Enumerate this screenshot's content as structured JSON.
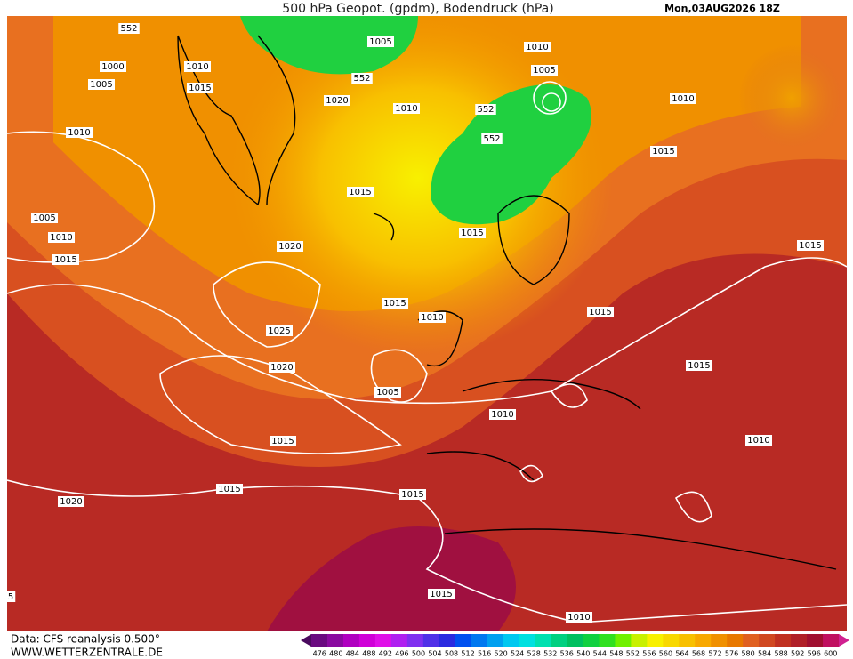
{
  "header": {
    "title": "500 hPa Geopot. (gpdm), Bodendruck (hPa)",
    "date": "Mon,03AUG2026 18Z"
  },
  "footer": {
    "source": "Data: CFS reanalysis 0.500°",
    "site": "WWW.WETTERZENTRALE.DE"
  },
  "contour_labels": [
    "552",
    "1005",
    "1010",
    "1000",
    "1010",
    "1005",
    "1005",
    "1015",
    "552",
    "1020",
    "1010",
    "552",
    "1010",
    "1010",
    "552",
    "1015",
    "1015",
    "1005",
    "1010",
    "1015",
    "1015",
    "1015",
    "1020",
    "1015",
    "1010",
    "1015",
    "1025",
    "1020",
    "1015",
    "1005",
    "1010",
    "1015",
    "1010",
    "1015",
    "1015",
    "1020",
    "1015",
    "1010",
    "5"
  ],
  "colorbar": {
    "labels": [
      "476",
      "480",
      "484",
      "488",
      "492",
      "496",
      "500",
      "504",
      "508",
      "512",
      "516",
      "520",
      "524",
      "528",
      "532",
      "536",
      "540",
      "544",
      "548",
      "552",
      "556",
      "560",
      "564",
      "568",
      "572",
      "576",
      "580",
      "584",
      "588",
      "592",
      "596",
      "600"
    ],
    "colors": [
      "#4a0a5e",
      "#6a0a80",
      "#8a0aa0",
      "#b000c0",
      "#d000d8",
      "#e010e8",
      "#b020f0",
      "#8030f0",
      "#5030e8",
      "#2a2ae0",
      "#0050f0",
      "#0078f0",
      "#00a0f0",
      "#00c8f0",
      "#00e0e0",
      "#00e0b0",
      "#00d080",
      "#00c060",
      "#10d040",
      "#30e020",
      "#70f000",
      "#c8f000",
      "#f8f000",
      "#f8d800",
      "#f8c000",
      "#f8a800",
      "#f09000",
      "#e87800",
      "#e06020",
      "#d04820",
      "#c03020",
      "#b02028",
      "#a01030",
      "#c01060",
      "#d02090"
    ]
  }
}
